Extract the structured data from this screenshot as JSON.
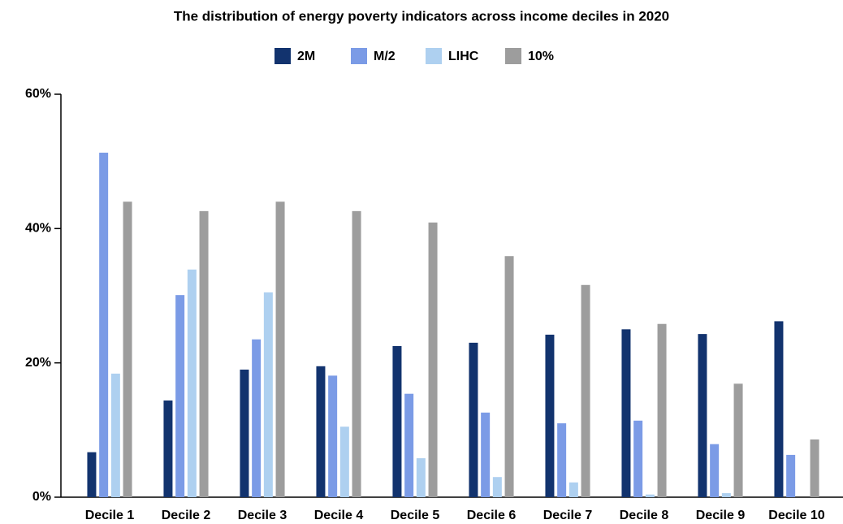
{
  "chart_data": {
    "type": "bar",
    "title": "The distribution of energy poverty indicators across income deciles in 2020",
    "categories": [
      "Decile 1",
      "Decile 2",
      "Decile 3",
      "Decile 4",
      "Decile 5",
      "Decile 6",
      "Decile 7",
      "Decile 8",
      "Decile 9",
      "Decile 10"
    ],
    "series": [
      {
        "name": "2M",
        "color": "#12336e",
        "values": [
          6.7,
          14.4,
          19.0,
          19.5,
          22.5,
          23.0,
          24.2,
          25.0,
          24.3,
          26.2
        ]
      },
      {
        "name": "M/2",
        "color": "#7b9be6",
        "values": [
          51.3,
          30.1,
          23.5,
          18.1,
          15.4,
          12.6,
          11.0,
          11.4,
          7.9,
          6.3
        ]
      },
      {
        "name": "LIHC",
        "color": "#aed0f0",
        "values": [
          18.4,
          33.9,
          30.5,
          10.5,
          5.8,
          3.0,
          2.2,
          0.4,
          0.6,
          0
        ]
      },
      {
        "name": "10%",
        "color": "#9d9d9d",
        "values": [
          44.0,
          42.6,
          44.0,
          42.6,
          40.9,
          35.9,
          31.6,
          25.8,
          16.9,
          8.6
        ]
      }
    ],
    "ylim": [
      0,
      60
    ],
    "yticks": [
      {
        "value": 0,
        "label": "0%"
      },
      {
        "value": 20,
        "label": "20%"
      },
      {
        "value": 40,
        "label": "40%"
      },
      {
        "value": 60,
        "label": "60%"
      }
    ],
    "grid": false,
    "legend": "top"
  }
}
